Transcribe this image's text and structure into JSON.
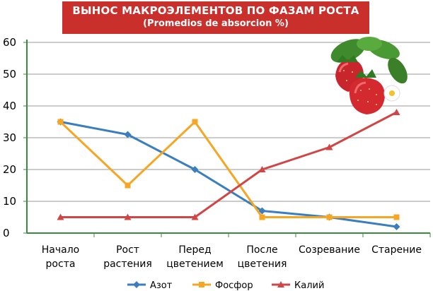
{
  "chart_data": {
    "type": "line",
    "title": "ВЫНОС МАКРОЭЛЕМЕНТОВ ПО ФАЗАМ РОСТА",
    "subtitle": "(Promedios de absorcion %)",
    "categories": [
      [
        "Начало",
        "роста"
      ],
      [
        "Рост",
        "растения"
      ],
      [
        "Перед",
        "цветением"
      ],
      [
        "После",
        "цветения"
      ],
      [
        "Созревание"
      ],
      [
        "Старение"
      ]
    ],
    "y_ticks": [
      "0",
      "10",
      "20",
      "30",
      "40",
      "50",
      "60"
    ],
    "ylim": [
      0,
      60
    ],
    "grid": true,
    "legend_position": "bottom",
    "series": [
      {
        "name": "Азот",
        "color": "#3a7ebf",
        "marker": "diamond",
        "values": [
          35,
          31,
          20,
          7,
          5,
          2
        ]
      },
      {
        "name": "Фосфор",
        "color": "#f5a623",
        "marker": "square",
        "values": [
          35,
          15,
          35,
          5,
          5,
          5
        ]
      },
      {
        "name": "Калий",
        "color": "#d04545",
        "marker": "triangle",
        "values": [
          5,
          5,
          5,
          20,
          27,
          38
        ]
      }
    ]
  },
  "decoration": {
    "image": "strawberries-icon"
  }
}
